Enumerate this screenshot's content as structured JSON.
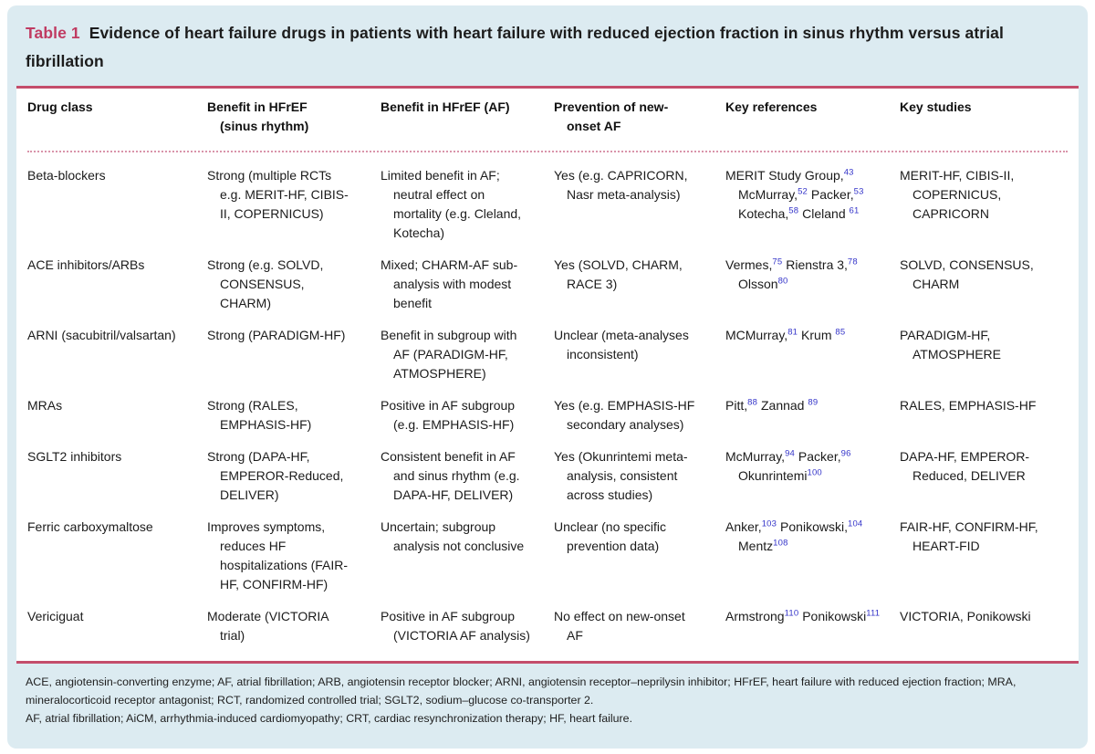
{
  "title": {
    "label": "Table 1",
    "text": "Evidence of heart failure drugs in patients with heart failure with reduced ejection fraction in sinus rhythm versus atrial fibrillation"
  },
  "colors": {
    "accent_crimson": "#c03b62",
    "rule_crimson": "#c44d6b",
    "dotted_pink": "#d994aa",
    "citation_blue": "#3434c9",
    "card_background": "#dcebf1",
    "table_background": "#ffffff"
  },
  "table": {
    "headers": [
      "Drug class",
      "Benefit in HFrEF (sinus rhythm)",
      "Benefit in HFrEF (AF)",
      "Prevention of new-onset AF",
      "Key references",
      "Key studies"
    ],
    "rows": [
      {
        "drug_class": "Beta-blockers",
        "benefit_sinus": "Strong (multiple RCTs e.g. MERIT-HF, CIBIS-II, COPERNICUS)",
        "benefit_af": "Limited benefit in AF; neutral effect on mortality (e.g. Cleland, Kotecha)",
        "prevention": "Yes (e.g. CAPRICORN, Nasr meta-analysis)",
        "references": [
          {
            "t": "MERIT Study Group,",
            "s": "43"
          },
          {
            "t": " McMurray,",
            "s": "52"
          },
          {
            "t": " Packer,",
            "s": "53"
          },
          {
            "t": " Kotecha,",
            "s": "58"
          },
          {
            "t": " Cleland ",
            "s": "61"
          }
        ],
        "studies": "MERIT-HF, CIBIS-II, COPERNICUS, CAPRICORN"
      },
      {
        "drug_class": "ACE inhibitors/ARBs",
        "benefit_sinus": "Strong (e.g. SOLVD, CONSENSUS, CHARM)",
        "benefit_af": "Mixed; CHARM-AF sub-analysis with modest benefit",
        "prevention": "Yes (SOLVD, CHARM, RACE 3)",
        "references": [
          {
            "t": "Vermes,",
            "s": "75"
          },
          {
            "t": " Rienstra 3,",
            "s": "78"
          },
          {
            "t": " Olsson",
            "s": "80"
          }
        ],
        "studies": "SOLVD, CONSENSUS, CHARM"
      },
      {
        "drug_class": "ARNI (sacubitril/valsartan)",
        "benefit_sinus": "Strong (PARADIGM-HF)",
        "benefit_af": "Benefit in subgroup with AF (PARADIGM-HF, ATMOSPHERE)",
        "prevention": "Unclear (meta-analyses inconsistent)",
        "references": [
          {
            "t": "MCMurray,",
            "s": "81"
          },
          {
            "t": " Krum ",
            "s": "85"
          }
        ],
        "studies": "PARADIGM-HF, ATMOSPHERE"
      },
      {
        "drug_class": "MRAs",
        "benefit_sinus": "Strong (RALES, EMPHASIS-HF)",
        "benefit_af": "Positive in AF subgroup (e.g. EMPHASIS-HF)",
        "prevention": "Yes (e.g. EMPHASIS-HF secondary analyses)",
        "references": [
          {
            "t": "Pitt,",
            "s": "88"
          },
          {
            "t": " Zannad ",
            "s": "89"
          }
        ],
        "studies": "RALES, EMPHASIS-HF"
      },
      {
        "drug_class": "SGLT2 inhibitors",
        "benefit_sinus": "Strong (DAPA-HF, EMPEROR-Reduced, DELIVER)",
        "benefit_af": "Consistent benefit in AF and sinus rhythm (e.g. DAPA-HF, DELIVER)",
        "prevention": "Yes (Okunrintemi meta-analysis, consistent across studies)",
        "references": [
          {
            "t": "McMurray,",
            "s": "94"
          },
          {
            "t": " Packer,",
            "s": "96"
          },
          {
            "t": " Okunrintemi",
            "s": "100"
          }
        ],
        "studies": "DAPA-HF, EMPEROR-Reduced, DELIVER"
      },
      {
        "drug_class": "Ferric carboxymaltose",
        "benefit_sinus": "Improves symptoms, reduces HF hospitalizations (FAIR-HF, CONFIRM-HF)",
        "benefit_af": "Uncertain; subgroup analysis not conclusive",
        "prevention": "Unclear (no specific prevention data)",
        "references": [
          {
            "t": "Anker,",
            "s": "103"
          },
          {
            "t": " Ponikowski,",
            "s": "104"
          },
          {
            "t": " Mentz",
            "s": "108"
          }
        ],
        "studies": "FAIR-HF, CONFIRM-HF, HEART-FID"
      },
      {
        "drug_class": "Vericiguat",
        "benefit_sinus": "Moderate (VICTORIA trial)",
        "benefit_af": "Positive in AF subgroup (VICTORIA AF analysis)",
        "prevention": "No effect on new-onset AF",
        "references": [
          {
            "t": "Armstrong",
            "s": "110"
          },
          {
            "t": " Ponikowski",
            "s": "111"
          }
        ],
        "studies": "VICTORIA, Ponikowski"
      }
    ]
  },
  "footnotes": [
    "ACE, angiotensin-converting enzyme; AF, atrial fibrillation; ARB, angiotensin receptor blocker; ARNI, angiotensin receptor–neprilysin inhibitor; HFrEF, heart failure with reduced ejection fraction; MRA, mineralocorticoid receptor antagonist; RCT, randomized controlled trial; SGLT2, sodium–glucose co-transporter 2.",
    "AF, atrial fibrillation; AiCM, arrhythmia-induced cardiomyopathy; CRT, cardiac resynchronization therapy; HF, heart failure."
  ]
}
